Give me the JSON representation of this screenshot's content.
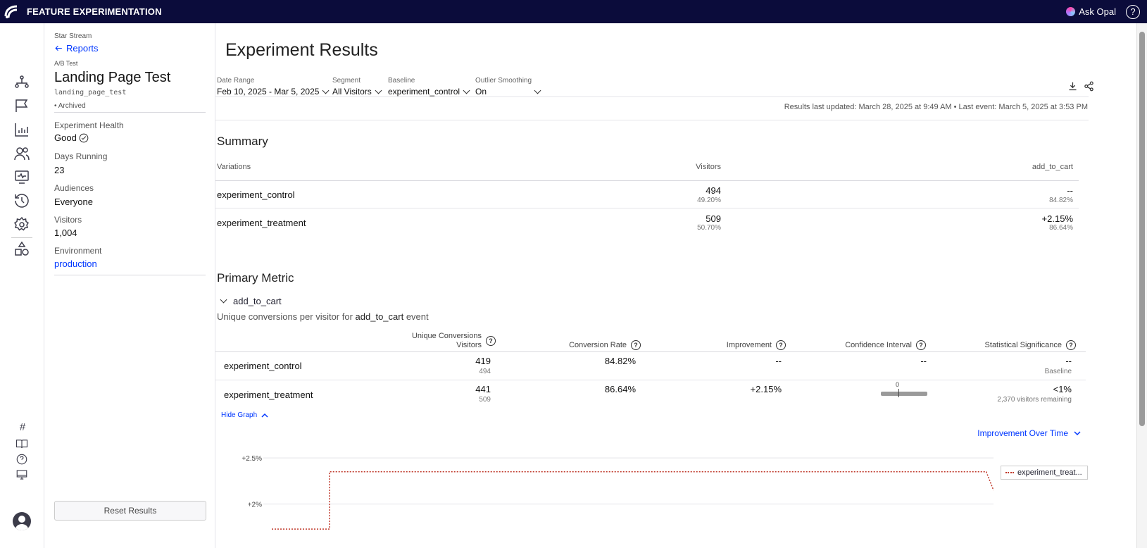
{
  "app": {
    "title": "FEATURE EXPERIMENTATION",
    "ask_opal": "Ask Opal",
    "help": "?"
  },
  "sidebar": {
    "project": "Star Stream",
    "back_label": "Reports",
    "exp_type": "A/B Test",
    "exp_name": "Landing Page Test",
    "exp_key": "landing_page_test",
    "status": "Archived",
    "health_label": "Experiment Health",
    "health_value": "Good",
    "days_label": "Days Running",
    "days_value": "23",
    "audiences_label": "Audiences",
    "audiences_value": "Everyone",
    "visitors_label": "Visitors",
    "visitors_value": "1,004",
    "environment_label": "Environment",
    "environment_value": "production",
    "reset_label": "Reset Results"
  },
  "rail": {
    "hash_glyph": "#",
    "help_glyph": "?"
  },
  "main": {
    "title": "Experiment Results",
    "filters": {
      "date_label": "Date Range",
      "date_value": "Feb 10, 2025 - Mar 5, 2025",
      "segment_label": "Segment",
      "segment_value": "All Visitors",
      "baseline_label": "Baseline",
      "baseline_value": "experiment_control",
      "outlier_label": "Outlier Smoothing",
      "outlier_value": "On"
    },
    "updated_text": "Results last updated: March 28, 2025 at 9:49 AM • Last event: March 5, 2025 at 3:53 PM"
  },
  "summary": {
    "title": "Summary",
    "headers": {
      "variations": "Variations",
      "visitors": "Visitors",
      "metric": "add_to_cart"
    },
    "rows": [
      {
        "name": "experiment_control",
        "visitors": "494",
        "visitors_pct": "49.20%",
        "metric": "--",
        "metric_sub": "84.82%"
      },
      {
        "name": "experiment_treatment",
        "visitors": "509",
        "visitors_pct": "50.70%",
        "metric": "+2.15%",
        "metric_sub": "86.64%"
      }
    ]
  },
  "primary": {
    "title": "Primary Metric",
    "metric_name": "add_to_cart",
    "desc_prefix": "Unique conversions per visitor for ",
    "desc_metric": "add_to_cart",
    "desc_suffix": " event",
    "headers": {
      "unique_line1": "Unique Conversions",
      "unique_line2": "Visitors",
      "rate": "Conversion Rate",
      "improvement": "Improvement",
      "ci": "Confidence Interval",
      "sig": "Statistical Significance"
    },
    "rows": [
      {
        "name": "experiment_control",
        "conversions": "419",
        "visitors": "494",
        "rate": "84.82%",
        "improvement": "--",
        "ci": "--",
        "sig": "--",
        "sig_sub": "Baseline"
      },
      {
        "name": "experiment_treatment",
        "conversions": "441",
        "visitors": "509",
        "rate": "86.64%",
        "improvement": "+2.15%",
        "ci_zero": "0",
        "sig": "<1%",
        "sig_sub": "2,370 visitors remaining"
      }
    ],
    "hide_graph": "Hide Graph",
    "chart_mode": "Improvement Over Time"
  },
  "chart_data": {
    "type": "line",
    "title": "",
    "ylabel": "",
    "yticks": [
      "+2.5%",
      "+2%"
    ],
    "ylim": [
      1.7,
      2.6
    ],
    "series": [
      {
        "name": "experiment_treat...",
        "color": "#c0392b",
        "style": "dotted",
        "x": [
          0,
          0.07,
          0.08,
          0.99,
          1.0
        ],
        "values": [
          1.73,
          1.73,
          2.35,
          2.35,
          2.15
        ]
      }
    ]
  },
  "colors": {
    "topbar": "#0b0c3b",
    "link": "#0037ff",
    "series": "#c0392b"
  }
}
